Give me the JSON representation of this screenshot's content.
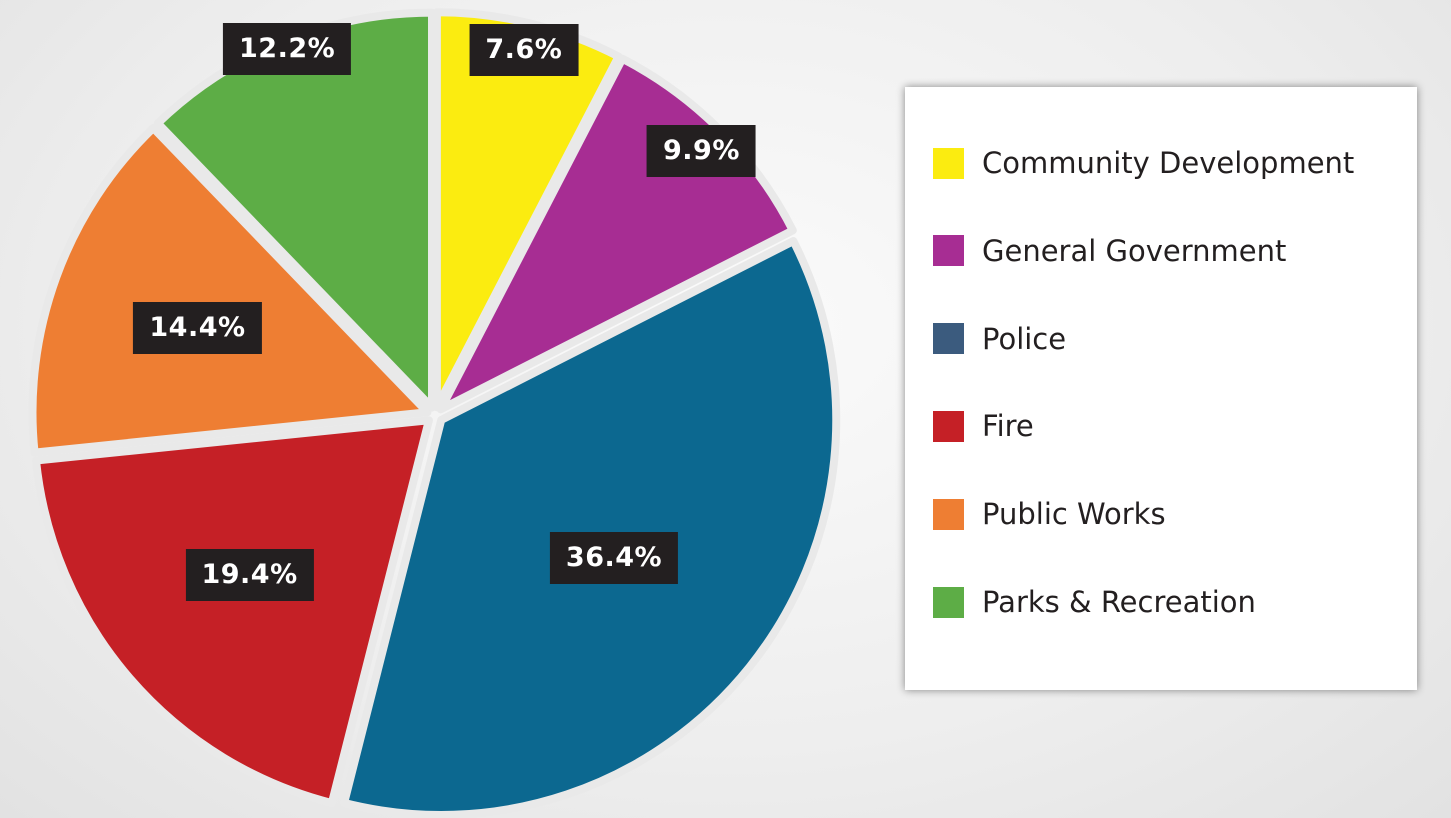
{
  "chart_data": {
    "type": "pie",
    "start": "top",
    "direction": "clockwise",
    "exploded": true,
    "legend_position": "right",
    "slices": [
      {
        "name": "Community Development",
        "value": 7.6,
        "label": "7.6%",
        "color": "#fbec10"
      },
      {
        "name": "General Government",
        "value": 9.9,
        "label": "9.9%",
        "color": "#a72d93"
      },
      {
        "name": "Police",
        "value": 36.4,
        "label": "36.4%",
        "color": "#0c6890"
      },
      {
        "name": "Fire",
        "value": 19.4,
        "label": "19.4%",
        "color": "#c52026"
      },
      {
        "name": "Public Works",
        "value": 14.4,
        "label": "14.4%",
        "color": "#ee7e33"
      },
      {
        "name": "Parks & Recreation",
        "value": 12.2,
        "label": "12.2%",
        "color": "#5dad46"
      }
    ],
    "legend_colors": [
      "#fbec10",
      "#a72d93",
      "#3b5b7e",
      "#c52026",
      "#ee7e33",
      "#5dad46"
    ]
  }
}
